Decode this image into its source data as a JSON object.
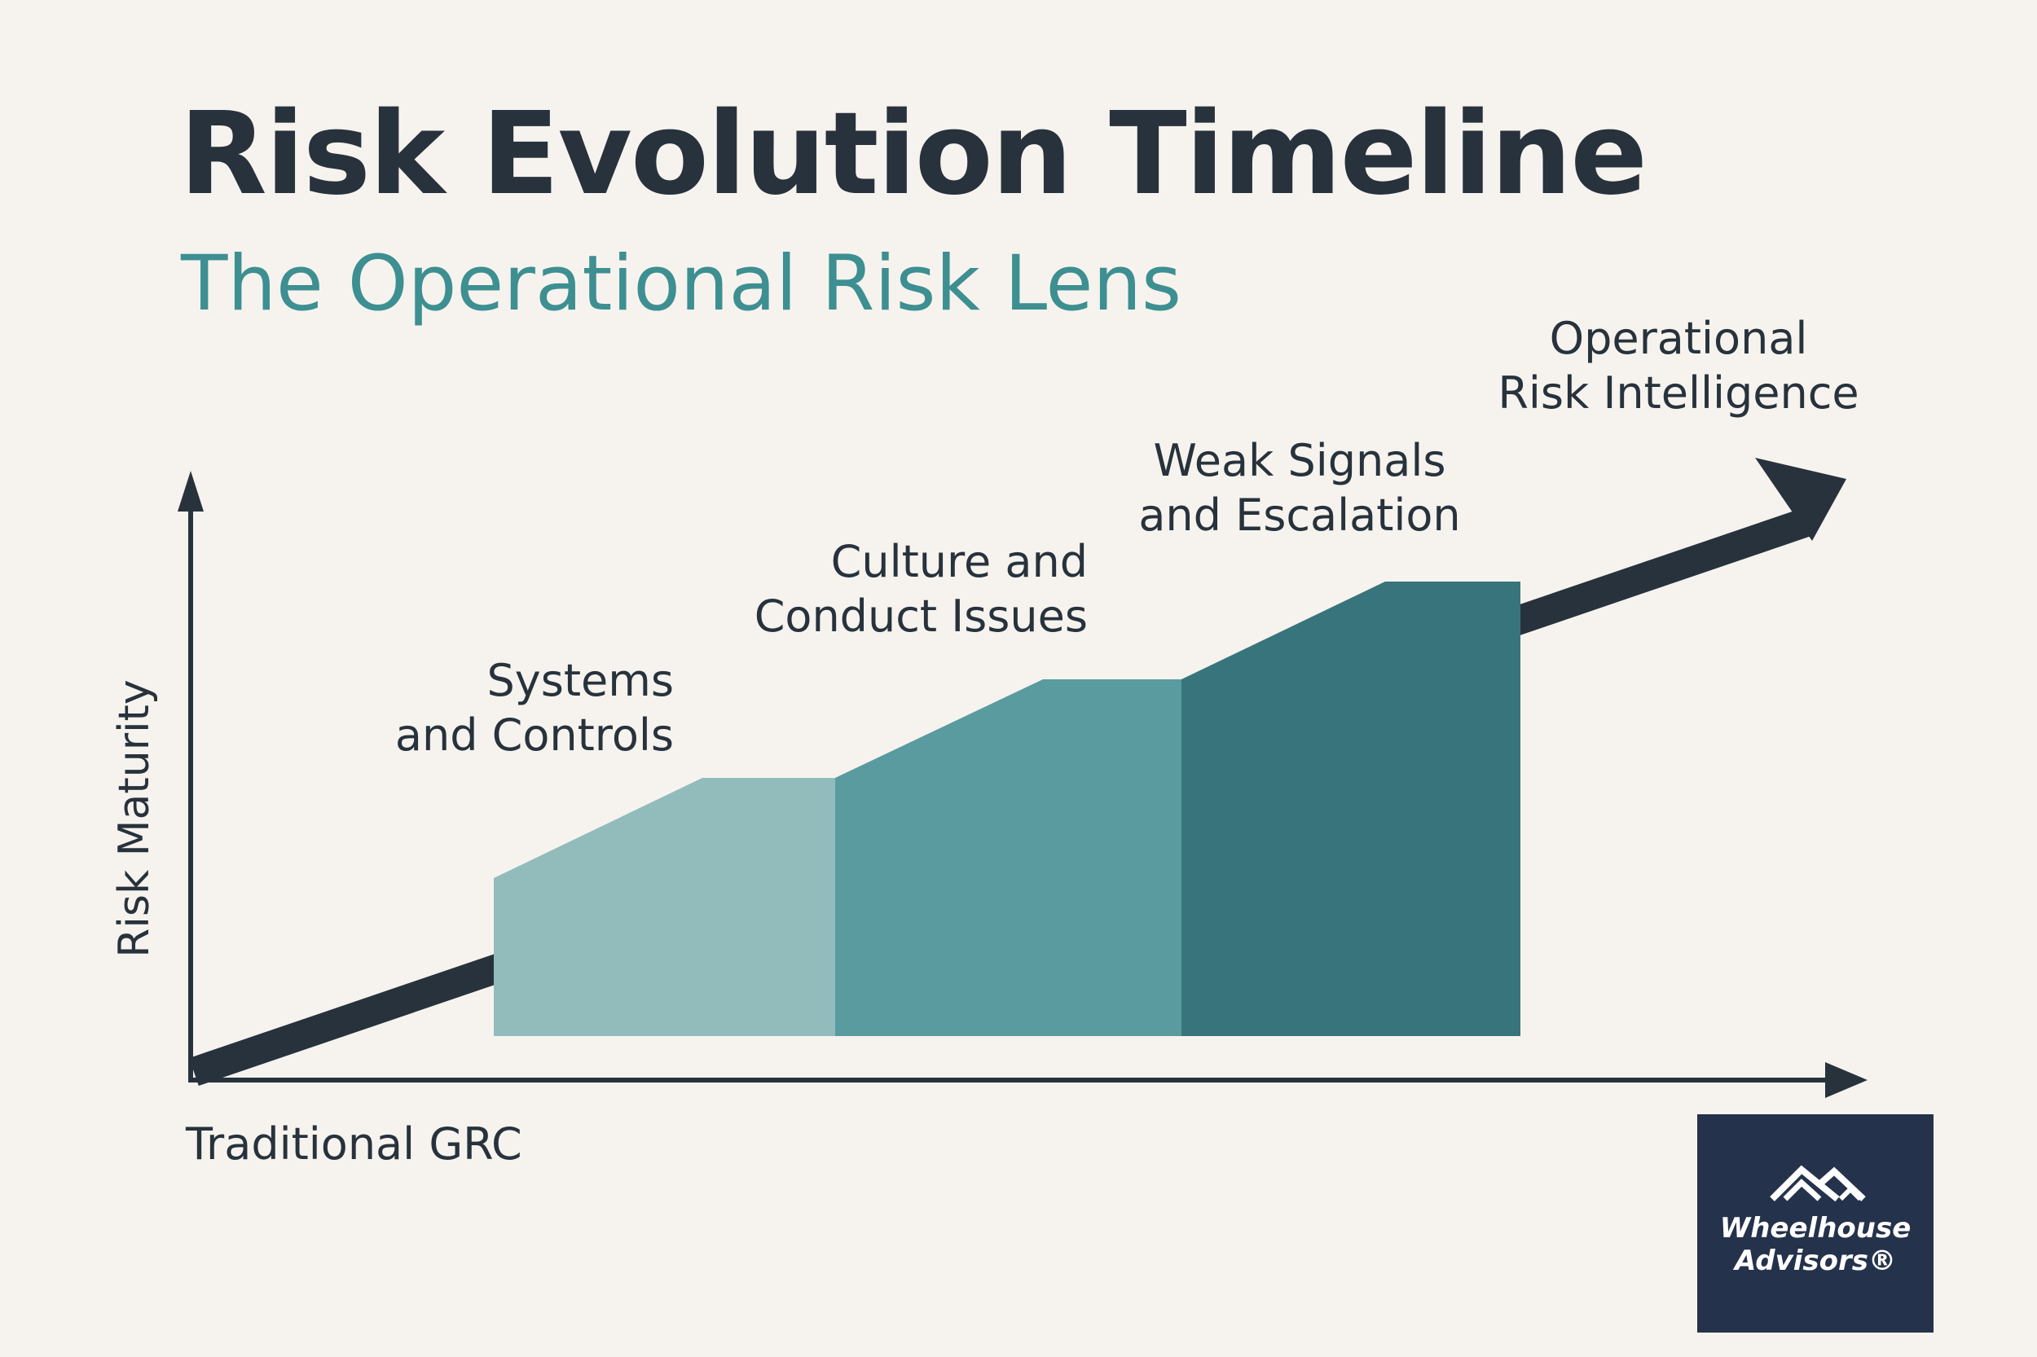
{
  "title": "Risk Evolution Timeline",
  "subtitle": "The Operational Risk Lens",
  "axes": {
    "y_label": "Risk Maturity",
    "x_label": "Traditional GRC"
  },
  "stages": [
    {
      "line1": "Systems",
      "line2": "and Controls",
      "color": "#92bcbc"
    },
    {
      "line1": "Culture and",
      "line2": "Conduct Issues",
      "color": "#5a9b9f"
    },
    {
      "line1": "Weak Signals",
      "line2": "and Escalation",
      "color": "#38747b"
    },
    {
      "line1": "Operational",
      "line2": "Risk Intelligence"
    }
  ],
  "colors": {
    "background": "#f6f3ee",
    "text": "#27323c",
    "accent": "#3d8f91",
    "arrow": "#27323c",
    "logo_bg": "#25324b"
  },
  "logo": {
    "line1": "Wheelhouse",
    "line2": "Advisors®",
    "icon": "roof-logo-icon"
  }
}
